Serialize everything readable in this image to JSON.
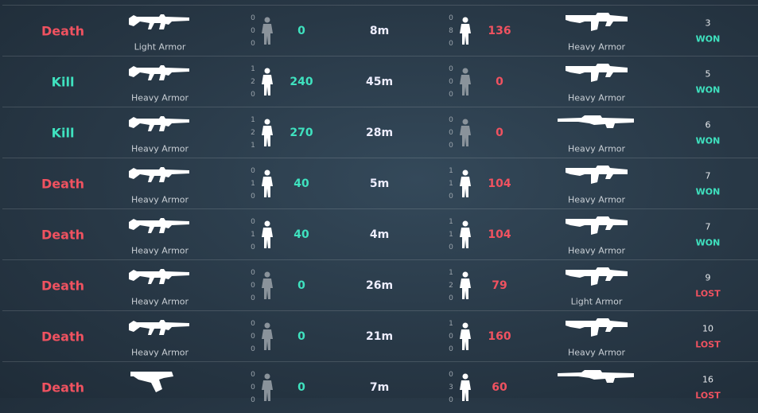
{
  "duels": [
    {
      "result": "Death",
      "armor": "Light Armor",
      "hits": [
        0,
        0,
        0
      ],
      "damage": 0,
      "distance": "8m",
      "enemy_hits": [
        0,
        8,
        0
      ],
      "enemy_damage": 136,
      "enemy_armor": "Heavy Armor",
      "round": 3,
      "outcome": "WON"
    },
    {
      "result": "Kill",
      "armor": "Heavy Armor",
      "hits": [
        1,
        2,
        0
      ],
      "damage": 240,
      "distance": "45m",
      "enemy_hits": [
        0,
        0,
        0
      ],
      "enemy_damage": 0,
      "enemy_armor": "Heavy Armor",
      "round": 5,
      "outcome": "WON"
    },
    {
      "result": "Kill",
      "armor": "Heavy Armor",
      "hits": [
        1,
        2,
        1
      ],
      "damage": 270,
      "distance": "28m",
      "enemy_hits": [
        0,
        0,
        0
      ],
      "enemy_damage": 0,
      "enemy_armor": "Heavy Armor",
      "round": 6,
      "outcome": "WON"
    },
    {
      "result": "Death",
      "armor": "Heavy Armor",
      "hits": [
        0,
        1,
        0
      ],
      "damage": 40,
      "distance": "5m",
      "enemy_hits": [
        1,
        1,
        0
      ],
      "enemy_damage": 104,
      "enemy_armor": "Heavy Armor",
      "round": 7,
      "outcome": "WON"
    },
    {
      "result": "Death",
      "armor": "Heavy Armor",
      "hits": [
        0,
        1,
        0
      ],
      "damage": 40,
      "distance": "4m",
      "enemy_hits": [
        1,
        1,
        0
      ],
      "enemy_damage": 104,
      "enemy_armor": "Heavy Armor",
      "round": 7,
      "outcome": "WON"
    },
    {
      "result": "Death",
      "armor": "Heavy Armor",
      "hits": [
        0,
        0,
        0
      ],
      "damage": 0,
      "distance": "26m",
      "enemy_hits": [
        1,
        2,
        0
      ],
      "enemy_damage": 79,
      "enemy_armor": "Light Armor",
      "round": 9,
      "outcome": "LOST"
    },
    {
      "result": "Death",
      "armor": "Heavy Armor",
      "hits": [
        0,
        0,
        0
      ],
      "damage": 0,
      "distance": "21m",
      "enemy_hits": [
        1,
        0,
        0
      ],
      "enemy_damage": 160,
      "enemy_armor": "Heavy Armor",
      "round": 10,
      "outcome": "LOST"
    },
    {
      "result": "Death",
      "hits": [
        0,
        0,
        0
      ],
      "damage": 0,
      "distance": "7m",
      "enemy_hits": [
        0,
        3,
        0
      ],
      "enemy_damage": 60,
      "round": 16,
      "outcome": "LOST"
    }
  ]
}
